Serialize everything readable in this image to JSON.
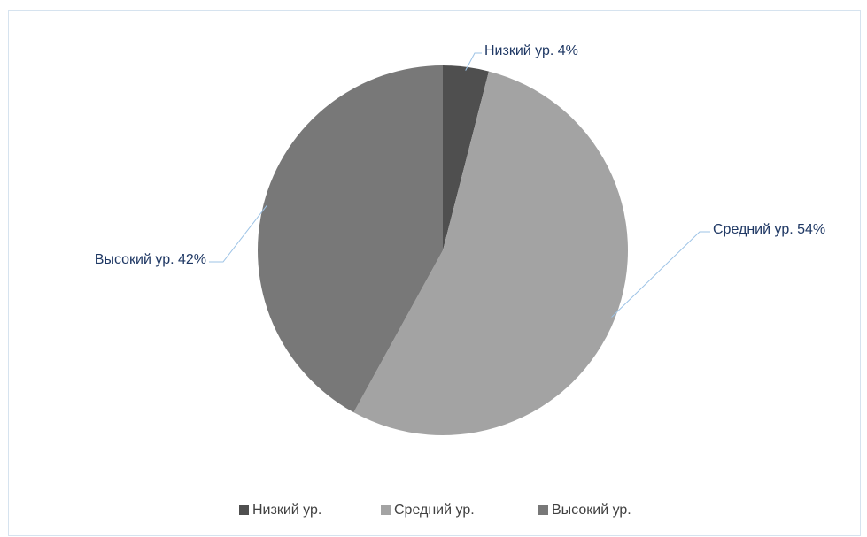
{
  "chart_data": {
    "type": "pie",
    "categories": [
      "Низкий ур.",
      "Средний ур.",
      "Высокий ур."
    ],
    "values": [
      4,
      54,
      42
    ],
    "value_labels": [
      "Низкий ур. 4%",
      "Средний ур. 54%",
      "Высокий ур. 42%"
    ],
    "colors": [
      "#4f4f4f",
      "#a3a3a3",
      "#787878"
    ],
    "legend": "bottom"
  }
}
